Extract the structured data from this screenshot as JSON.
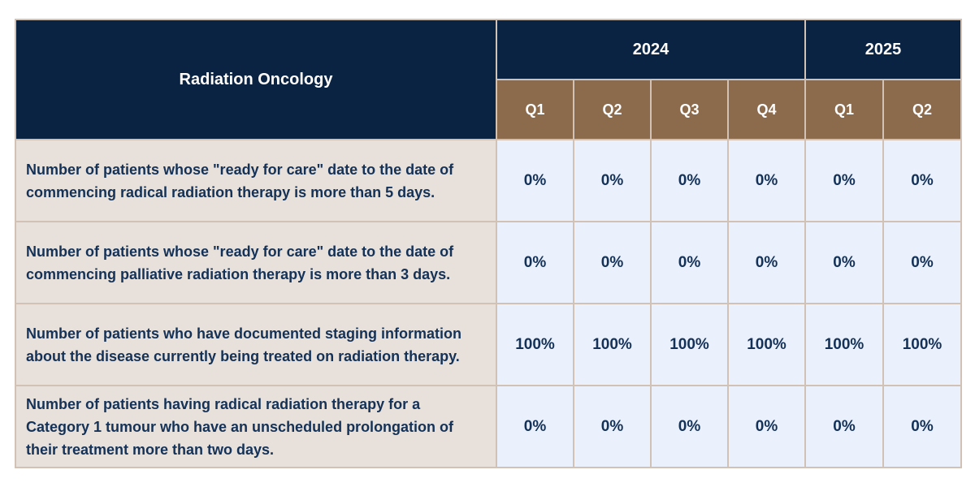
{
  "table": {
    "title": "Radiation Oncology",
    "years": [
      {
        "label": "2024",
        "span": 4
      },
      {
        "label": "2025",
        "span": 2
      }
    ],
    "quarters": [
      "Q1",
      "Q2",
      "Q3",
      "Q4",
      "Q1",
      "Q2"
    ],
    "rows": [
      {
        "label": "Number of patients whose \"ready for care\" date to the date of commencing radical radiation therapy is more than 5 days.",
        "values": [
          "0%",
          "0%",
          "0%",
          "0%",
          "0%",
          "0%"
        ]
      },
      {
        "label": "Number of patients whose \"ready for care\" date to the date of commencing palliative radiation therapy is more than 3 days.",
        "values": [
          "0%",
          "0%",
          "0%",
          "0%",
          "0%",
          "0%"
        ]
      },
      {
        "label": "Number of patients who have documented staging information about the disease currently being treated on radiation therapy.",
        "values": [
          "100%",
          "100%",
          "100%",
          "100%",
          "100%",
          "100%"
        ]
      },
      {
        "label": "Number of patients having radical radiation therapy for a Category 1 tumour who have an unscheduled prolongation of their treatment more than two days.",
        "values": [
          "0%",
          "0%",
          "0%",
          "0%",
          "0%",
          "0%"
        ]
      }
    ]
  },
  "colors": {
    "header_navy": "#0a2342",
    "quarter_brown": "#8c6a4c",
    "label_beige": "#e8e0da",
    "value_cell": "#eaf0fc",
    "text_navy": "#143257",
    "border": "#d2c2b6"
  }
}
